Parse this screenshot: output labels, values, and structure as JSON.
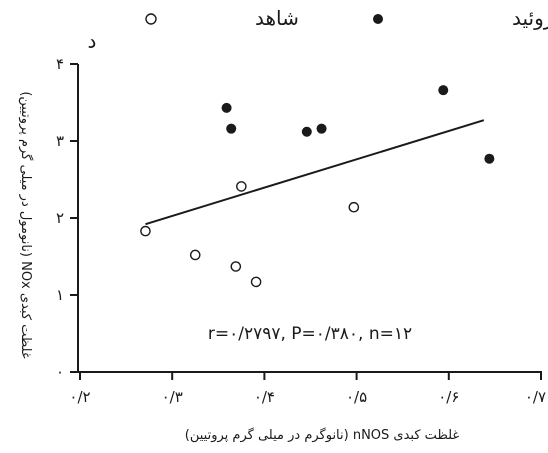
{
  "chart_data": {
    "type": "scatter",
    "panel_label": "د",
    "xlabel": "غلظت کبدی nNOS (نانوگرم در میلی گرم پروتیین)",
    "ylabel": "غلظت کبدی NOx (نانومول در میلی گرم پروتیین)",
    "xlim": [
      0.2,
      0.7
    ],
    "ylim": [
      0,
      4
    ],
    "x_ticks": [
      0.2,
      0.3,
      0.4,
      0.5,
      0.6,
      0.7
    ],
    "x_tick_labels": [
      "۰/۲",
      "۰/۳",
      "۰/۴",
      "۰/۵",
      "۰/۶",
      "۰/۷"
    ],
    "y_ticks": [
      0,
      1,
      2,
      3,
      4
    ],
    "y_tick_labels": [
      "۰",
      "۱",
      "۲",
      "۳",
      "۴"
    ],
    "series": [
      {
        "name": "شاهد",
        "marker": "open-circle",
        "color": "#1a1a1a",
        "points": [
          {
            "x": 0.271,
            "y": 1.83
          },
          {
            "x": 0.325,
            "y": 1.52
          },
          {
            "x": 0.369,
            "y": 1.37
          },
          {
            "x": 0.375,
            "y": 2.41
          },
          {
            "x": 0.391,
            "y": 1.17
          },
          {
            "x": 0.497,
            "y": 2.14
          }
        ]
      },
      {
        "name": "پرکار تیروئید",
        "marker": "filled-circle",
        "color": "#1a1a1a",
        "points": [
          {
            "x": 0.359,
            "y": 3.43
          },
          {
            "x": 0.364,
            "y": 3.16
          },
          {
            "x": 0.446,
            "y": 3.12
          },
          {
            "x": 0.462,
            "y": 3.16
          },
          {
            "x": 0.594,
            "y": 3.66
          },
          {
            "x": 0.644,
            "y": 2.77
          }
        ]
      }
    ],
    "trendline": {
      "x1": 0.271,
      "y1": 1.92,
      "x2": 0.638,
      "y2": 3.27
    },
    "annotation": "r=۰/۲۷۹۷, P=۰/۳۸۰, n=۱۲",
    "legend_position": "top"
  }
}
